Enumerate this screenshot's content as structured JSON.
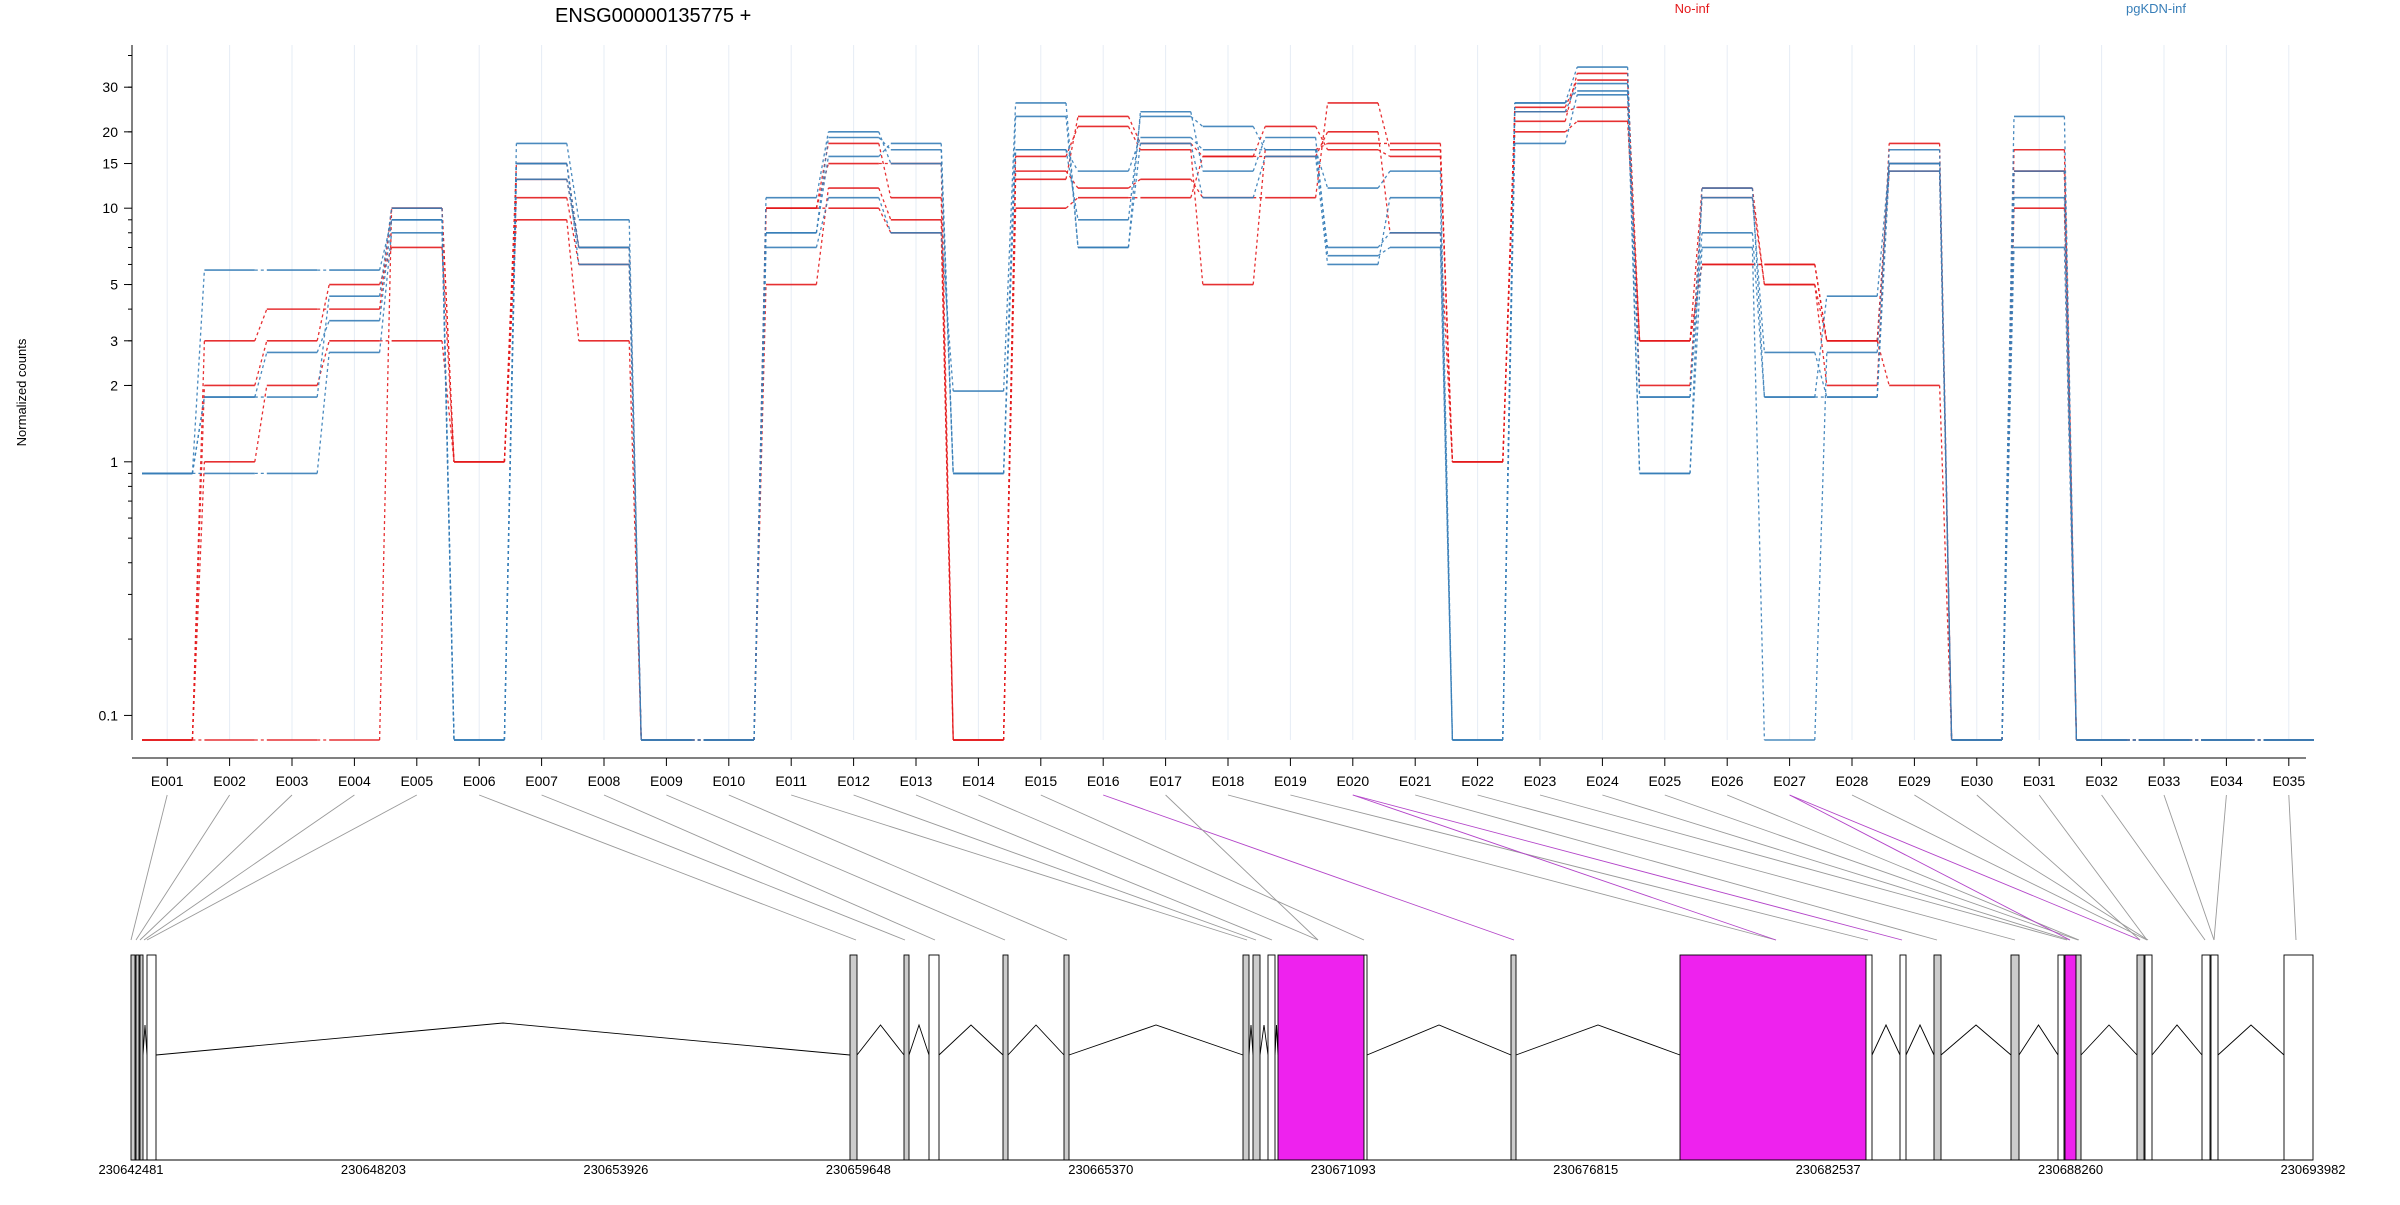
{
  "chart_data": {
    "type": "line",
    "title": "ENSG00000135775 +",
    "ylabel": "Normalized counts",
    "xlabel": "",
    "yscale": "log",
    "y_ticks": [
      "0.1",
      "1",
      "2",
      "3",
      "5",
      "10",
      "15",
      "20",
      "30"
    ],
    "y_tick_values": [
      0.1,
      1,
      2,
      3,
      5,
      10,
      15,
      20,
      30
    ],
    "ylim": [
      0.08,
      44
    ],
    "legend": {
      "placement": "top",
      "entries": [
        "No-inf",
        "pgKDN-inf"
      ]
    },
    "colors": {
      "No-inf": "#e41a1c",
      "pgKDN-inf": "#377eb8",
      "highlight": "#ee22ee"
    },
    "categories": [
      "E001",
      "E002",
      "E003",
      "E004",
      "E005",
      "E006",
      "E007",
      "E008",
      "E009",
      "E010",
      "E011",
      "E012",
      "E013",
      "E014",
      "E015",
      "E016",
      "E017",
      "E018",
      "E019",
      "E020",
      "E021",
      "E022",
      "E023",
      "E024",
      "E025",
      "E026",
      "E027",
      "E028",
      "E029",
      "E030",
      "E031",
      "E032",
      "E033",
      "E034",
      "E035"
    ],
    "highlighted_bins": [
      "E016",
      "E020",
      "E027"
    ],
    "series": [
      {
        "group": "No-inf",
        "values": [
          0.08,
          1,
          2,
          3,
          3,
          1,
          9,
          3,
          0.08,
          0.08,
          5,
          12,
          9,
          0.08,
          14,
          12,
          13,
          11,
          11,
          26,
          17,
          1,
          20,
          22,
          3,
          6,
          6,
          3,
          2,
          0.08,
          14,
          0.08,
          0.08,
          0.08,
          0.08
        ]
      },
      {
        "group": "No-inf",
        "values": [
          0.08,
          2,
          3,
          5,
          7,
          1,
          11,
          6,
          0.08,
          0.08,
          10,
          18,
          11,
          0.08,
          16,
          21,
          17,
          5,
          17,
          18,
          18,
          1,
          22,
          34,
          2,
          11,
          5,
          3,
          14,
          0.08,
          10,
          0.08,
          0.08,
          0.08,
          0.08
        ]
      },
      {
        "group": "No-inf",
        "values": [
          0.08,
          3,
          4,
          4,
          10,
          1,
          13,
          7,
          0.08,
          0.08,
          10,
          15,
          15,
          0.08,
          13,
          23,
          18,
          16,
          21,
          17,
          16,
          1,
          25,
          32,
          3,
          12,
          5,
          2,
          18,
          0.08,
          17,
          0.08,
          0.08,
          0.08,
          0.08
        ]
      },
      {
        "group": "No-inf",
        "values": [
          0.08,
          0.08,
          0.08,
          0.08,
          10,
          1,
          15,
          7,
          0.08,
          0.08,
          10,
          10,
          8,
          0.08,
          10,
          11,
          11,
          16,
          16,
          20,
          8,
          1,
          24,
          25,
          3,
          6,
          6,
          3,
          15,
          0.08,
          14,
          0.08,
          0.08,
          0.08,
          0.08
        ]
      },
      {
        "group": "pgKDN-inf",
        "values": [
          0.9,
          0.9,
          0.9,
          2.7,
          8,
          0.08,
          15,
          6,
          0.08,
          0.08,
          7,
          11,
          8,
          1.9,
          26,
          7,
          18,
          11,
          16,
          6,
          11,
          0.08,
          18,
          28,
          0.9,
          7,
          0.08,
          2.7,
          15,
          0.08,
          7,
          0.08,
          0.08,
          0.08,
          0.08
        ]
      },
      {
        "group": "pgKDN-inf",
        "values": [
          0.9,
          1.8,
          2.7,
          3.6,
          9,
          0.08,
          13,
          7,
          0.08,
          0.08,
          11,
          20,
          15,
          0.9,
          17,
          14,
          19,
          17,
          17,
          12,
          14,
          0.08,
          26,
          29,
          1.8,
          8,
          1.8,
          1.8,
          17,
          0.08,
          23,
          0.08,
          0.08,
          0.08,
          0.08
        ]
      },
      {
        "group": "pgKDN-inf",
        "values": [
          0.9,
          5.7,
          5.7,
          5.7,
          9,
          0.08,
          15,
          7,
          0.08,
          0.08,
          8,
          16,
          18,
          0.9,
          23,
          7,
          24,
          14,
          19,
          6.5,
          7,
          0.08,
          24,
          31,
          0.9,
          12,
          1.8,
          4.5,
          15,
          0.08,
          11,
          0.08,
          0.08,
          0.08,
          0.08
        ]
      },
      {
        "group": "pgKDN-inf",
        "values": [
          0.9,
          1.8,
          1.8,
          4.5,
          10,
          0.08,
          18,
          9,
          0.08,
          0.08,
          8,
          19,
          17,
          0.9,
          17,
          9,
          23,
          21,
          17,
          7,
          8,
          0.08,
          26,
          36,
          1.8,
          11,
          2.7,
          1.8,
          14,
          0.08,
          14,
          0.08,
          0.08,
          0.08,
          0.08
        ]
      }
    ],
    "genome_ticks": [
      "230642481",
      "230648203",
      "230653926",
      "230659648",
      "230665370",
      "230671093",
      "230676815",
      "230682537",
      "230688260",
      "230693982"
    ]
  }
}
